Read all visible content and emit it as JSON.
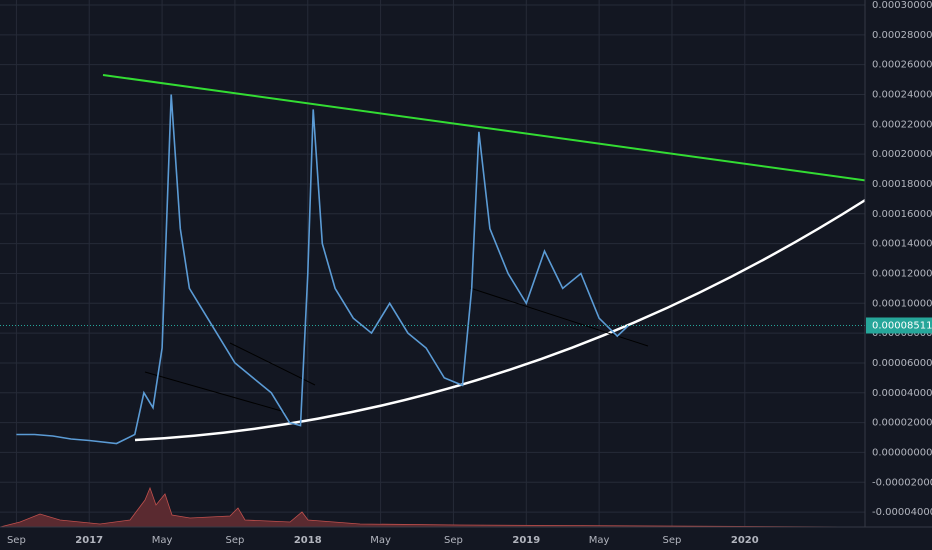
{
  "chart_data": {
    "type": "line",
    "x": [
      0,
      1,
      2,
      3,
      4,
      5.5,
      6.5,
      7,
      7.5,
      8,
      8.5,
      9,
      9.5,
      10,
      11,
      12,
      13,
      14,
      15,
      15.6,
      16,
      16.3,
      16.8,
      17.5,
      18.5,
      19.5,
      20.5,
      21.5,
      22.5,
      23.5,
      24.5,
      25,
      25.4,
      26,
      27,
      28,
      29,
      30,
      31,
      32,
      33,
      33.6
    ],
    "values": [
      1.2e-05,
      1.2e-05,
      1.1e-05,
      9e-06,
      8e-06,
      6e-06,
      1.2e-05,
      4e-05,
      3e-05,
      7e-05,
      0.00024,
      0.00015,
      0.00011,
      0.0001,
      8e-05,
      6e-05,
      5e-05,
      4e-05,
      2e-05,
      1.8e-05,
      0.00012,
      0.00023,
      0.00014,
      0.00011,
      9e-05,
      8e-05,
      0.0001,
      8e-05,
      7e-05,
      5e-05,
      4.5e-05,
      0.00011,
      0.000215,
      0.00015,
      0.00012,
      0.0001,
      0.000135,
      0.00011,
      0.00012,
      9e-05,
      7.8e-05,
      8.5e-05
    ],
    "color": "#5b9bd5",
    "xlim": [
      -0.9,
      46.6
    ],
    "xticks": [
      {
        "value": 0,
        "label": "Sep"
      },
      {
        "value": 4,
        "label": "2017"
      },
      {
        "value": 8,
        "label": "May"
      },
      {
        "value": 12,
        "label": "Sep"
      },
      {
        "value": 16,
        "label": "2018"
      },
      {
        "value": 20,
        "label": "May"
      },
      {
        "value": 24,
        "label": "Sep"
      },
      {
        "value": 28,
        "label": "2019"
      },
      {
        "value": 32,
        "label": "May"
      },
      {
        "value": 36,
        "label": "Sep"
      },
      {
        "value": 40,
        "label": "2020"
      }
    ],
    "ylim": [
      -5e-05,
      0.0003
    ],
    "yticks": [
      {
        "value": 0.0003,
        "label": "0.00030000"
      },
      {
        "value": 0.00028,
        "label": "0.00028000"
      },
      {
        "value": 0.00026,
        "label": "0.00026000"
      },
      {
        "value": 0.00024,
        "label": "0.00024000"
      },
      {
        "value": 0.00022,
        "label": "0.00022000"
      },
      {
        "value": 0.0002,
        "label": "0.00020000"
      },
      {
        "value": 0.00018,
        "label": "0.00018000"
      },
      {
        "value": 0.00016,
        "label": "0.00016000"
      },
      {
        "value": 0.00014,
        "label": "0.00014000"
      },
      {
        "value": 0.00012,
        "label": "0.00012000"
      },
      {
        "value": 0.0001,
        "label": "0.00010000"
      },
      {
        "value": 8e-05,
        "label": "0.00008000"
      },
      {
        "value": 6e-05,
        "label": "0.00006000"
      },
      {
        "value": 4e-05,
        "label": "0.00004000"
      },
      {
        "value": 2e-05,
        "label": "0.00002000"
      },
      {
        "value": 0,
        "label": "0.00000000"
      },
      {
        "value": -2e-05,
        "label": "-0.00002000"
      },
      {
        "value": -4e-05,
        "label": "-0.00004000"
      }
    ],
    "grid": true,
    "price_label": {
      "value": 8.511e-05,
      "label": "0.00008511"
    }
  }
}
